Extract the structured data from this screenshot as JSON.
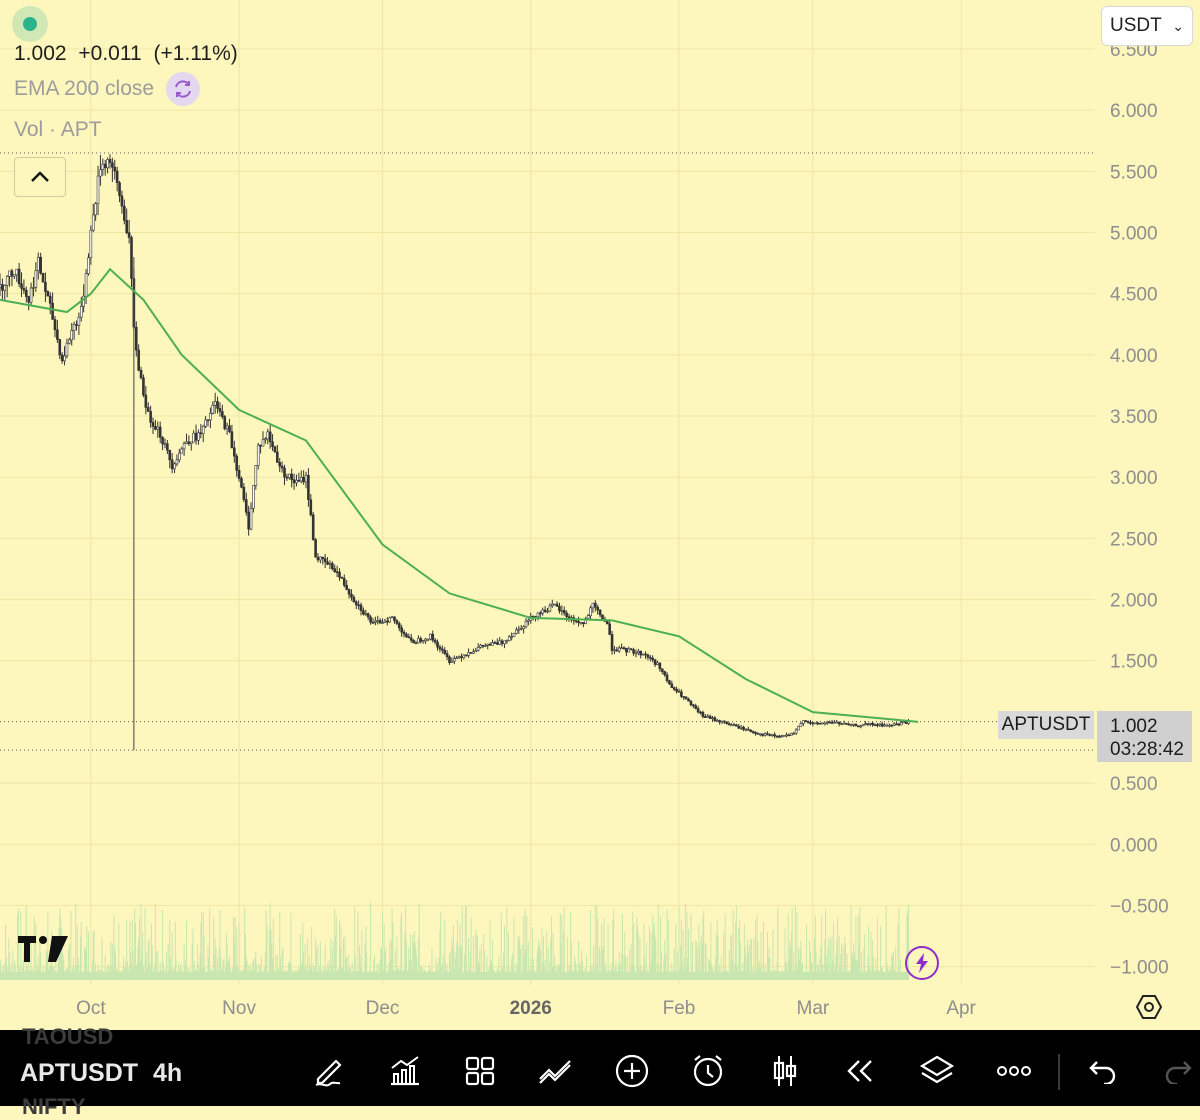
{
  "header": {
    "last_price": "1.002",
    "change": "+0.011",
    "change_pct": "(+1.11%)",
    "ema_label": "EMA 200 close",
    "vol_label": "Vol · APT",
    "currency": "USDT"
  },
  "price_tag": {
    "symbol": "APTUSDT",
    "price": "1.002",
    "countdown": "03:28:42"
  },
  "toolbar": {
    "symbol": "APTUSDT",
    "interval": "4h",
    "ghost_above": "TAOUSD",
    "ghost_below": "NIFTY"
  },
  "colors": {
    "background": "#fdf6bd",
    "candle": "#333333",
    "ema": "#4caf50",
    "volume": "#c8e6b0",
    "toolbar": "#000000"
  },
  "chart_data": {
    "type": "candlestick",
    "symbol": "APTUSDT",
    "interval": "4h",
    "y_ticks": [
      "6.500",
      "6.000",
      "5.500",
      "5.000",
      "4.500",
      "4.000",
      "3.500",
      "3.000",
      "2.500",
      "2.000",
      "1.500",
      "0.500",
      "0.000",
      "−0.500",
      "−1.000"
    ],
    "ylim": [
      -1.15,
      6.9
    ],
    "x_ticks": [
      {
        "label": "Oct",
        "date": "2025-10-01"
      },
      {
        "label": "Nov",
        "date": "2025-11-01"
      },
      {
        "label": "Dec",
        "date": "2025-12-01"
      },
      {
        "label": "2026",
        "date": "2026-01-01",
        "bold": true
      },
      {
        "label": "Feb",
        "date": "2026-02-01"
      },
      {
        "label": "Mar",
        "date": "2026-03-01"
      },
      {
        "label": "Apr",
        "date": "2026-04-01"
      }
    ],
    "xlim": [
      "2025-09-12",
      "2026-04-29"
    ],
    "price_series": [
      {
        "date": "2025-09-12",
        "price": 4.55
      },
      {
        "date": "2025-09-15",
        "price": 4.7
      },
      {
        "date": "2025-09-18",
        "price": 4.45
      },
      {
        "date": "2025-09-20",
        "price": 4.75
      },
      {
        "date": "2025-09-23",
        "price": 4.3
      },
      {
        "date": "2025-09-25",
        "price": 3.95
      },
      {
        "date": "2025-09-27",
        "price": 4.2
      },
      {
        "date": "2025-09-29",
        "price": 4.35
      },
      {
        "date": "2025-10-01",
        "price": 5.0
      },
      {
        "date": "2025-10-03",
        "price": 5.55
      },
      {
        "date": "2025-10-05",
        "price": 5.6
      },
      {
        "date": "2025-10-07",
        "price": 5.3
      },
      {
        "date": "2025-10-09",
        "price": 4.95
      },
      {
        "date": "2025-10-10",
        "price": 4.2
      },
      {
        "date": "2025-10-11",
        "price": 3.9
      },
      {
        "date": "2025-10-13",
        "price": 3.5
      },
      {
        "date": "2025-10-15",
        "price": 3.4
      },
      {
        "date": "2025-10-18",
        "price": 3.1
      },
      {
        "date": "2025-10-21",
        "price": 3.3
      },
      {
        "date": "2025-10-24",
        "price": 3.35
      },
      {
        "date": "2025-10-27",
        "price": 3.6
      },
      {
        "date": "2025-10-30",
        "price": 3.35
      },
      {
        "date": "2025-11-01",
        "price": 3.0
      },
      {
        "date": "2025-11-03",
        "price": 2.6
      },
      {
        "date": "2025-11-05",
        "price": 3.25
      },
      {
        "date": "2025-11-07",
        "price": 3.35
      },
      {
        "date": "2025-11-10",
        "price": 3.05
      },
      {
        "date": "2025-11-13",
        "price": 2.95
      },
      {
        "date": "2025-11-15",
        "price": 3.0
      },
      {
        "date": "2025-11-17",
        "price": 2.35
      },
      {
        "date": "2025-11-21",
        "price": 2.25
      },
      {
        "date": "2025-11-25",
        "price": 2.0
      },
      {
        "date": "2025-11-29",
        "price": 1.8
      },
      {
        "date": "2025-12-03",
        "price": 1.85
      },
      {
        "date": "2025-12-07",
        "price": 1.65
      },
      {
        "date": "2025-12-11",
        "price": 1.7
      },
      {
        "date": "2025-12-15",
        "price": 1.5
      },
      {
        "date": "2025-12-18",
        "price": 1.55
      },
      {
        "date": "2025-12-22",
        "price": 1.62
      },
      {
        "date": "2025-12-26",
        "price": 1.65
      },
      {
        "date": "2025-12-30",
        "price": 1.78
      },
      {
        "date": "2026-01-02",
        "price": 1.88
      },
      {
        "date": "2026-01-06",
        "price": 1.95
      },
      {
        "date": "2026-01-09",
        "price": 1.85
      },
      {
        "date": "2026-01-12",
        "price": 1.8
      },
      {
        "date": "2026-01-14",
        "price": 1.95
      },
      {
        "date": "2026-01-17",
        "price": 1.8
      },
      {
        "date": "2026-01-18",
        "price": 1.6
      },
      {
        "date": "2026-01-22",
        "price": 1.58
      },
      {
        "date": "2026-01-25",
        "price": 1.55
      },
      {
        "date": "2026-01-28",
        "price": 1.45
      },
      {
        "date": "2026-01-30",
        "price": 1.3
      },
      {
        "date": "2026-02-02",
        "price": 1.2
      },
      {
        "date": "2026-02-04",
        "price": 1.12
      },
      {
        "date": "2026-02-06",
        "price": 1.05
      },
      {
        "date": "2026-02-10",
        "price": 1.0
      },
      {
        "date": "2026-02-14",
        "price": 0.95
      },
      {
        "date": "2026-02-18",
        "price": 0.9
      },
      {
        "date": "2026-02-22",
        "price": 0.88
      },
      {
        "date": "2026-02-25",
        "price": 0.9
      },
      {
        "date": "2026-02-27",
        "price": 1.02
      },
      {
        "date": "2026-03-01",
        "price": 0.98
      },
      {
        "date": "2026-03-05",
        "price": 1.0
      },
      {
        "date": "2026-03-09",
        "price": 0.97
      },
      {
        "date": "2026-03-13",
        "price": 0.98
      },
      {
        "date": "2026-03-17",
        "price": 0.97
      },
      {
        "date": "2026-03-21",
        "price": 1.002
      }
    ],
    "series": [
      {
        "name": "EMA 200 close",
        "points": [
          {
            "date": "2025-09-12",
            "value": 4.45
          },
          {
            "date": "2025-09-26",
            "value": 4.35
          },
          {
            "date": "2025-10-01",
            "value": 4.5
          },
          {
            "date": "2025-10-05",
            "value": 4.7
          },
          {
            "date": "2025-10-12",
            "value": 4.45
          },
          {
            "date": "2025-10-20",
            "value": 4.0
          },
          {
            "date": "2025-11-01",
            "value": 3.55
          },
          {
            "date": "2025-11-15",
            "value": 3.3
          },
          {
            "date": "2025-12-01",
            "value": 2.45
          },
          {
            "date": "2025-12-15",
            "value": 2.05
          },
          {
            "date": "2026-01-01",
            "value": 1.85
          },
          {
            "date": "2026-01-18",
            "value": 1.83
          },
          {
            "date": "2026-02-01",
            "value": 1.7
          },
          {
            "date": "2026-02-15",
            "value": 1.35
          },
          {
            "date": "2026-03-01",
            "value": 1.08
          },
          {
            "date": "2026-03-15",
            "value": 1.03
          },
          {
            "date": "2026-03-23",
            "value": 1.0
          }
        ]
      }
    ],
    "reference_lines": [
      {
        "label": "high",
        "value": 5.65
      },
      {
        "label": "last",
        "value": 1.002
      },
      {
        "label": "low",
        "value": 0.77
      }
    ],
    "crash_wick": {
      "date": "2025-10-10",
      "high": 4.8,
      "low": 0.77
    },
    "grid": true
  }
}
